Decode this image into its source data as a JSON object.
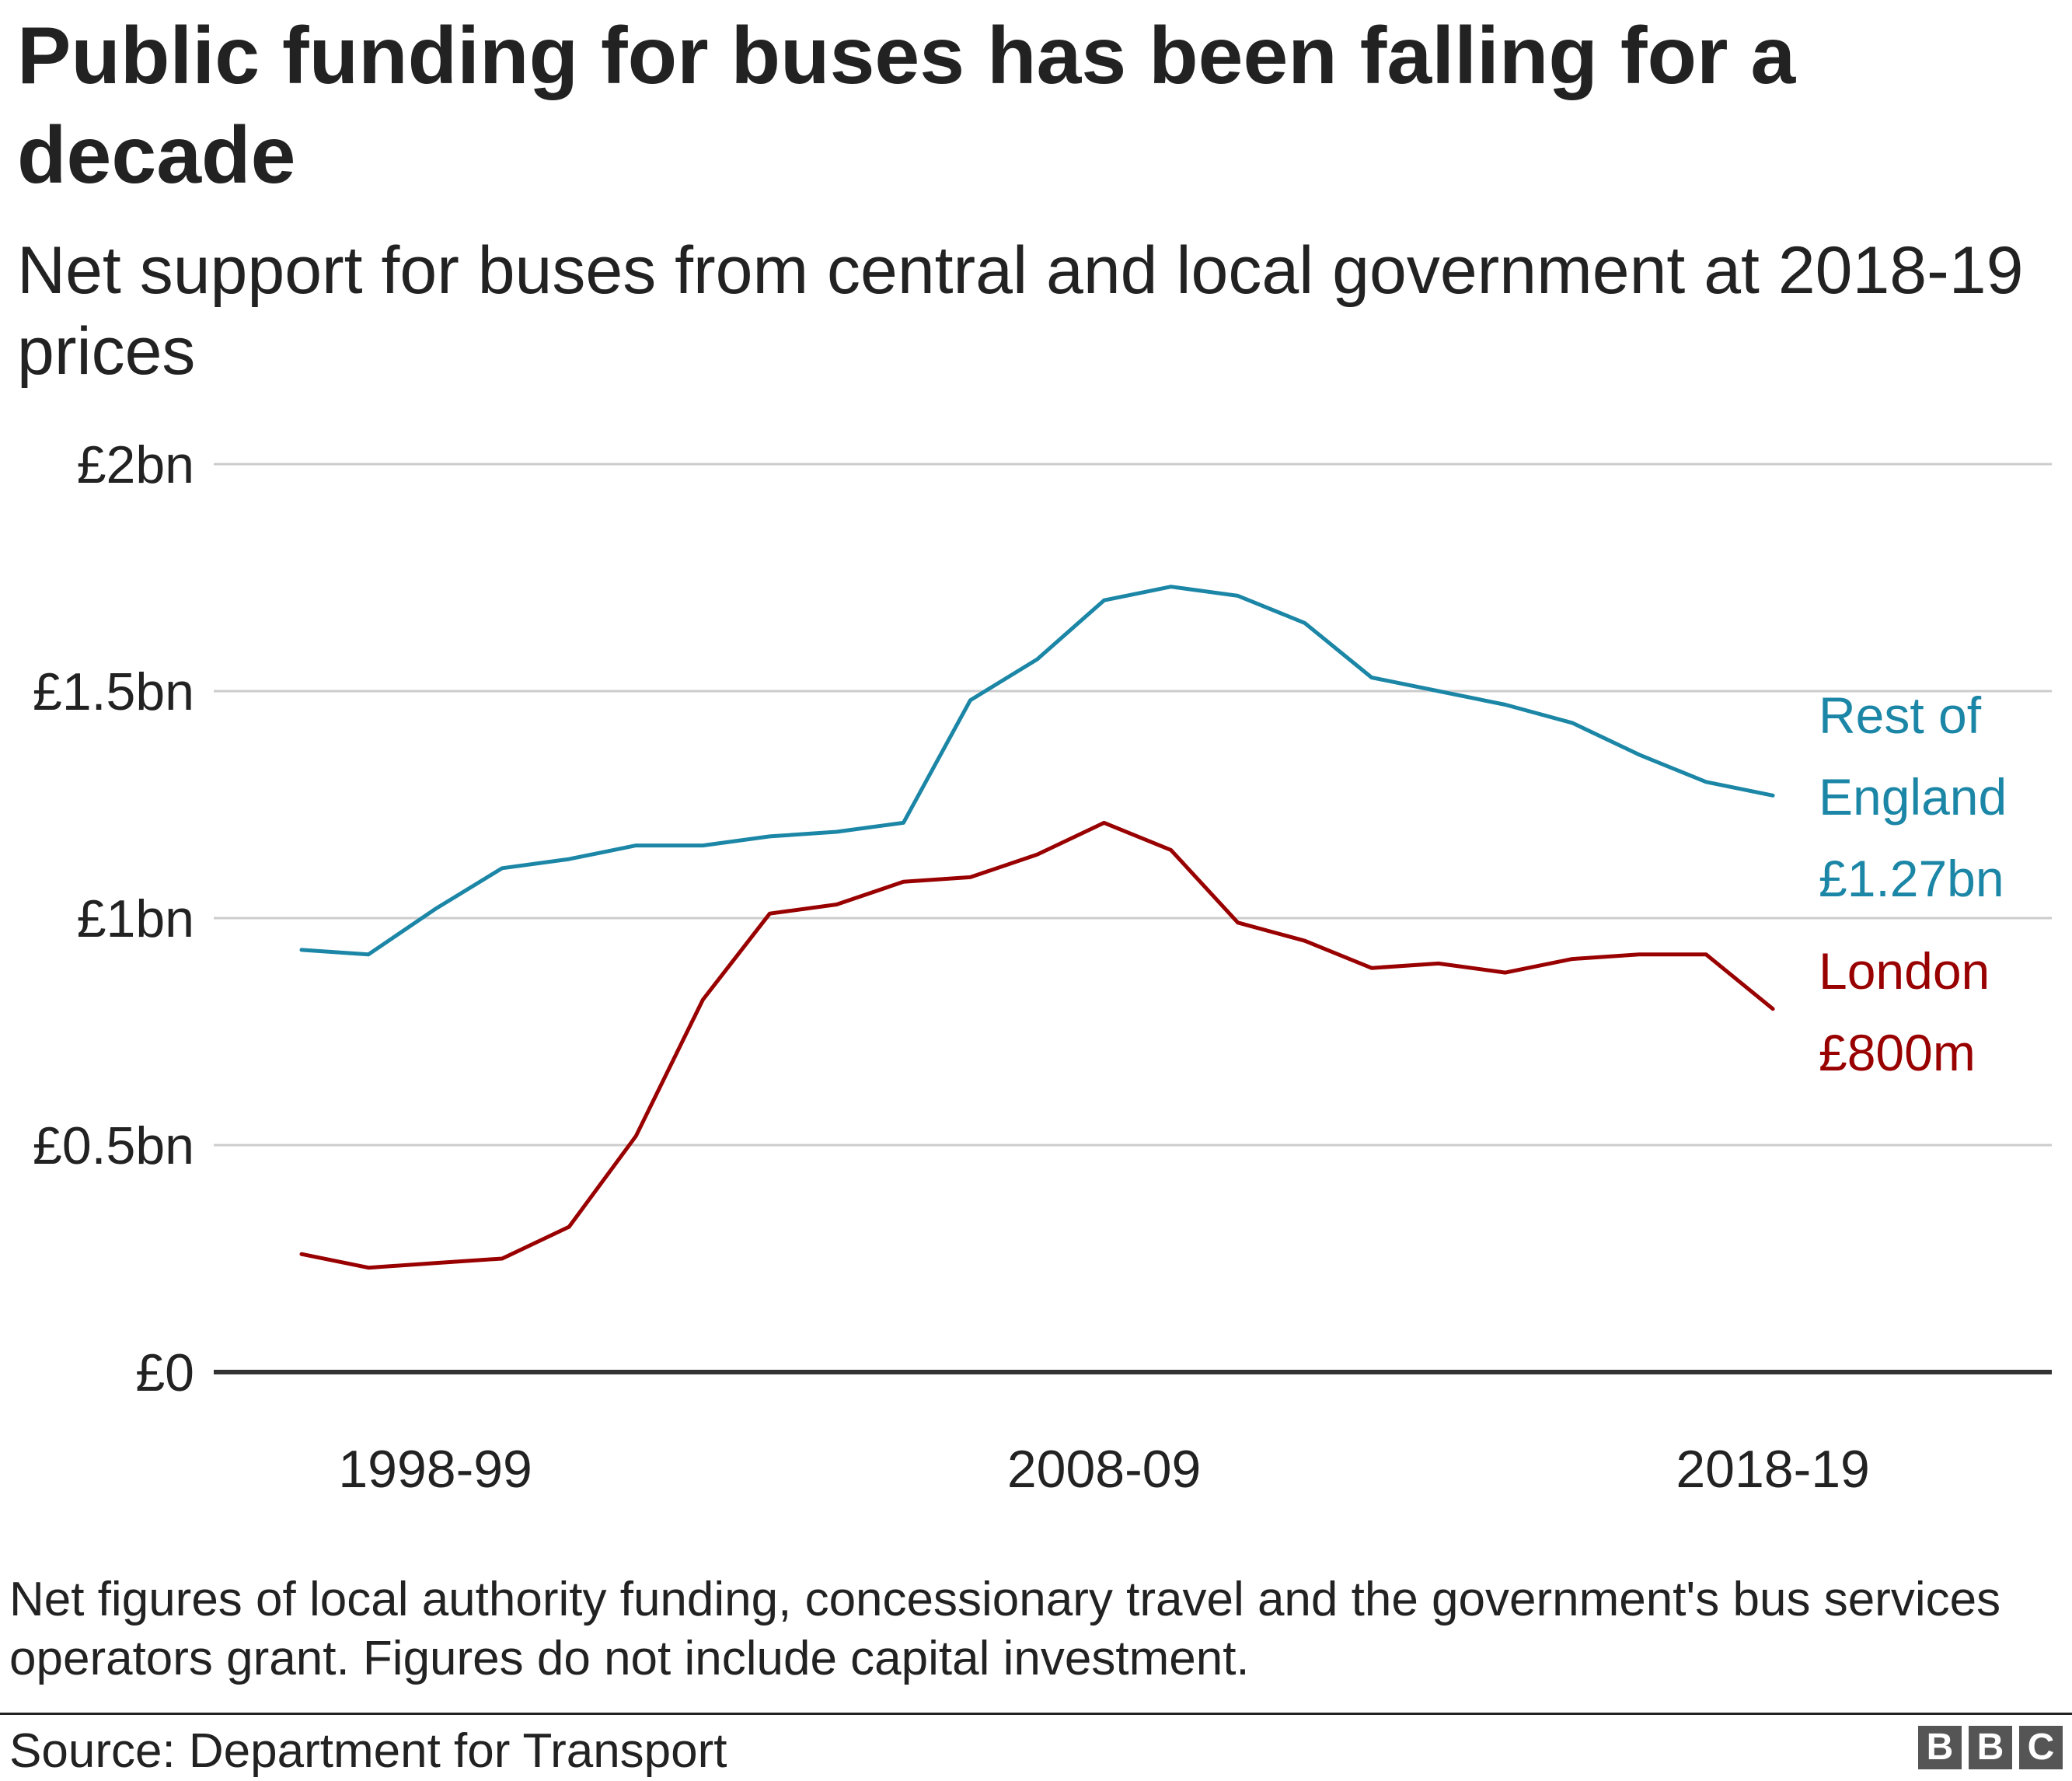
{
  "header": {
    "title": "Public funding for buses has been falling for a decade",
    "subtitle": "Net support for buses from central and local government at 2018-19 prices"
  },
  "footer": {
    "note": "Net figures of local authority funding, concessionary travel and the government's bus services operators grant. Figures do not include capital investment.",
    "source": "Source: Department for Transport",
    "logo_letters": [
      "B",
      "B",
      "C"
    ]
  },
  "chart_data": {
    "type": "line",
    "title": "Public funding for buses has been falling for a decade",
    "subtitle": "Net support for buses from central and local government at 2018-19 prices",
    "xlabel": "",
    "ylabel": "",
    "unit": "£bn",
    "x": [
      "1996-97",
      "1997-98",
      "1998-99",
      "1999-00",
      "2000-01",
      "2001-02",
      "2002-03",
      "2003-04",
      "2004-05",
      "2005-06",
      "2006-07",
      "2007-08",
      "2008-09",
      "2009-10",
      "2010-11",
      "2011-12",
      "2012-13",
      "2013-14",
      "2014-15",
      "2015-16",
      "2016-17",
      "2017-18",
      "2018-19"
    ],
    "x_ticks": [
      {
        "x": "1998-99",
        "label": "1998-99"
      },
      {
        "x": "2008-09",
        "label": "2008-09"
      },
      {
        "x": "2018-19",
        "label": "2018-19"
      }
    ],
    "ylim": [
      0,
      2
    ],
    "y_ticks": [
      {
        "value": 0,
        "label": "£0"
      },
      {
        "value": 0.5,
        "label": "£0.5bn"
      },
      {
        "value": 1,
        "label": "£1bn"
      },
      {
        "value": 1.5,
        "label": "£1.5bn"
      },
      {
        "value": 2,
        "label": "£2bn"
      }
    ],
    "grid": true,
    "series": [
      {
        "name": "Rest of England",
        "color": "#1b86a6",
        "label_lines": [
          "Rest of",
          "England",
          "£1.27bn"
        ],
        "values": [
          0.93,
          0.92,
          1.02,
          1.11,
          1.13,
          1.16,
          1.16,
          1.18,
          1.19,
          1.21,
          1.48,
          1.57,
          1.7,
          1.73,
          1.71,
          1.65,
          1.53,
          1.5,
          1.47,
          1.43,
          1.36,
          1.3,
          1.27
        ]
      },
      {
        "name": "London",
        "color": "#990000",
        "label_lines": [
          "London",
          "£800m"
        ],
        "values": [
          0.26,
          0.23,
          0.24,
          0.25,
          0.32,
          0.52,
          0.82,
          1.01,
          1.03,
          1.08,
          1.09,
          1.14,
          1.21,
          1.15,
          0.99,
          0.95,
          0.89,
          0.9,
          0.88,
          0.91,
          0.92,
          0.92,
          0.8
        ]
      }
    ]
  }
}
